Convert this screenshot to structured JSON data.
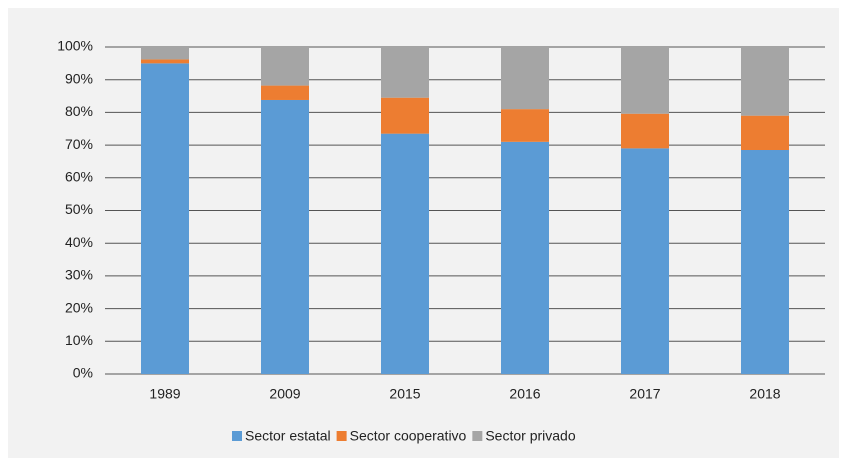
{
  "chart_data": {
    "type": "stacked_bar",
    "categories": [
      "1989",
      "2009",
      "2015",
      "2016",
      "2017",
      "2018"
    ],
    "series": [
      {
        "name": "Sector estatal",
        "color": "#5b9bd5",
        "values": [
          95,
          83.8,
          73.5,
          71,
          69,
          68.5
        ]
      },
      {
        "name": "Sector cooperativo",
        "color": "#ed7d31",
        "values": [
          1.2,
          4.4,
          11,
          10,
          10.6,
          10.5
        ]
      },
      {
        "name": "Sector privado",
        "color": "#a5a5a5",
        "values": [
          3.8,
          11.8,
          15.5,
          19,
          20.4,
          21
        ]
      }
    ],
    "ylim": [
      0,
      100
    ],
    "yticks": [
      {
        "value": 0,
        "label": "0%"
      },
      {
        "value": 10,
        "label": "10%"
      },
      {
        "value": 20,
        "label": "20%"
      },
      {
        "value": 30,
        "label": "30%"
      },
      {
        "value": 40,
        "label": "40%"
      },
      {
        "value": 50,
        "label": "50%"
      },
      {
        "value": 60,
        "label": "60%"
      },
      {
        "value": 70,
        "label": "70%"
      },
      {
        "value": 80,
        "label": "80%"
      },
      {
        "value": 90,
        "label": "90%"
      },
      {
        "value": 100,
        "label": "100%"
      }
    ],
    "grid": true,
    "legend": "bottom"
  }
}
